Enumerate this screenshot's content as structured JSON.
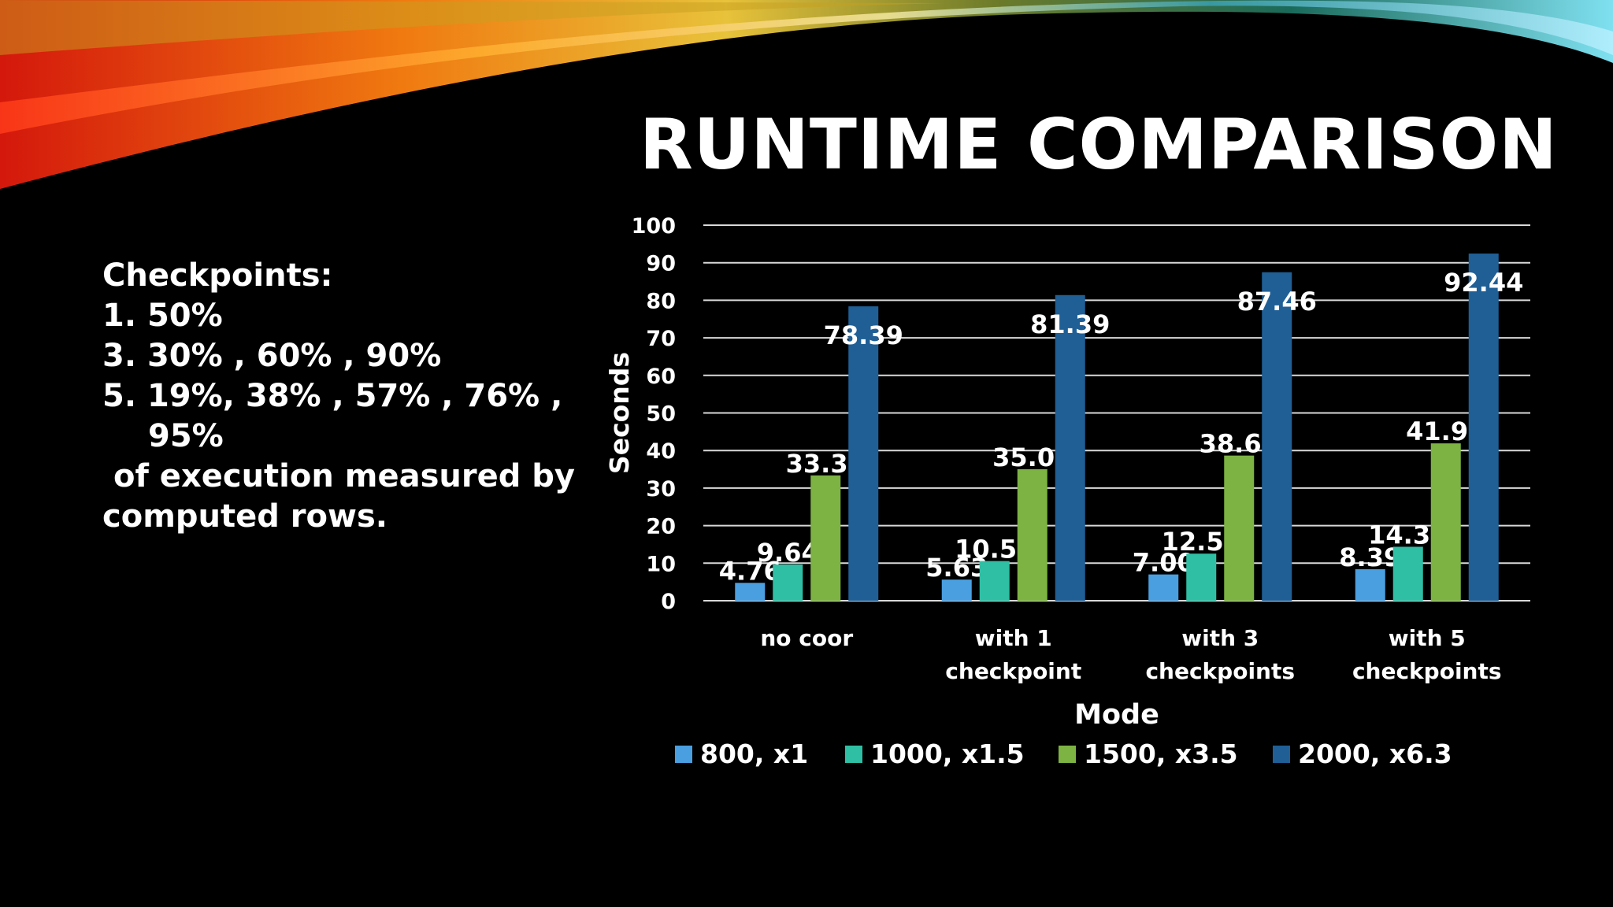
{
  "slide": {
    "title": "RUNTIME COMPARISON",
    "notes": {
      "heading": "Checkpoints:",
      "line1": "1. 50%",
      "line2": "3. 30% , 60% , 90%",
      "line3": "5. 19%,  38% , 57% , 76% ,",
      "line3_cont": "95%",
      "line4": " of execution measured by",
      "line5": "computed rows."
    }
  },
  "chart_data": {
    "type": "bar",
    "categories": [
      [
        "no coor"
      ],
      [
        "with 1",
        "checkpoint"
      ],
      [
        "with 3",
        "checkpoints"
      ],
      [
        "with 5",
        "checkpoints"
      ]
    ],
    "series": [
      {
        "name": "800, x1",
        "color": "#4a9fe0",
        "values": [
          4.76,
          5.63,
          7.0,
          8.39
        ]
      },
      {
        "name": "1000, x1.5",
        "color": "#2fbfa4",
        "values": [
          9.64,
          10.57,
          12.54,
          14.37
        ]
      },
      {
        "name": "1500, x3.5",
        "color": "#7cb342",
        "values": [
          33.37,
          35.02,
          38.65,
          41.9
        ]
      },
      {
        "name": "2000, x6.3",
        "color": "#1f5f96",
        "values": [
          78.39,
          81.39,
          87.46,
          92.44
        ]
      }
    ],
    "data_labels": [
      [
        "4.76",
        "5.63",
        "7.00",
        "8.39"
      ],
      [
        "9.64",
        "10.57",
        "12.54",
        "14.37"
      ],
      [
        "33.37",
        "35.02",
        "38.65",
        "41.90"
      ],
      [
        "78.39",
        "81.39",
        "87.46",
        "92.44"
      ]
    ],
    "xlabel": "Mode",
    "ylabel": "Seconds",
    "ylim": [
      0,
      100
    ],
    "yticks": [
      0,
      10,
      20,
      30,
      40,
      50,
      60,
      70,
      80,
      90,
      100
    ],
    "grid": true,
    "legend": "bottom"
  }
}
